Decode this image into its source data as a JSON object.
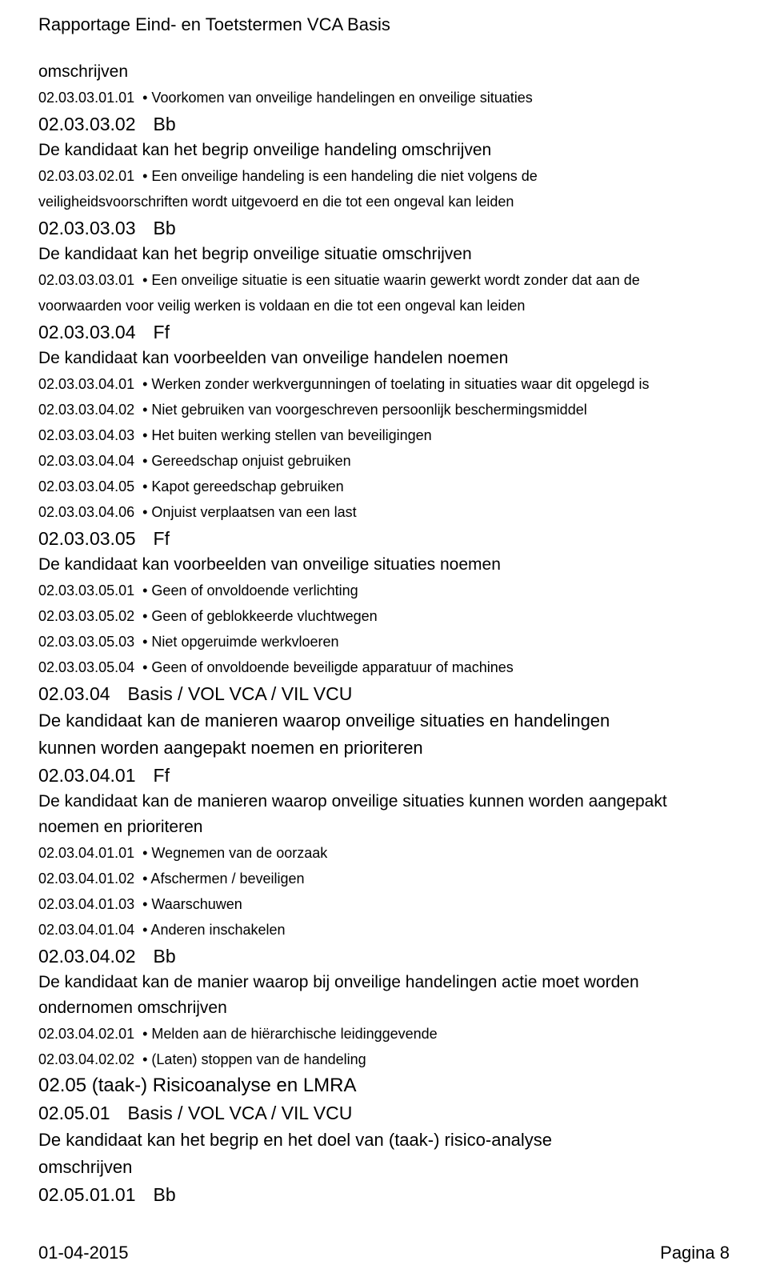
{
  "header": {
    "title": "Rapportage Eind- en Toetstermen VCA Basis"
  },
  "footer": {
    "date": "01-04-2015",
    "page": "Pagina 8"
  },
  "body": {
    "first_lvl_b": "omschrijven",
    "b1_code": "02.03.03.01.01",
    "b1_text": "• Voorkomen van onveilige handelingen en onveilige situaties",
    "s020302_code": "02.03.03.02",
    "s020302_label": "Bb",
    "s020302_desc": "De kandidaat kan het begrip onveilige handeling omschrijven",
    "b2_code": "02.03.03.02.01",
    "b2_text": "• Een onveilige handeling is een handeling die niet volgens de",
    "b2_text2": "veiligheidsvoorschriften wordt uitgevoerd en die tot een ongeval kan leiden",
    "s020303_code": "02.03.03.03",
    "s020303_label": "Bb",
    "s020303_desc": "De kandidaat kan het begrip onveilige situatie omschrijven",
    "b3_code": "02.03.03.03.01",
    "b3_text": "• Een onveilige situatie is een situatie waarin gewerkt wordt zonder dat aan de",
    "b3_text2": "voorwaarden voor veilig werken is voldaan en die tot een ongeval kan leiden",
    "s020304_code": "02.03.03.04",
    "s020304_label": "Ff",
    "s020304_desc": "De kandidaat kan voorbeelden van onveilige handelen noemen",
    "b4_1_code": "02.03.03.04.01",
    "b4_1_text": "• Werken zonder werkvergunningen of toelating in situaties waar dit opgelegd is",
    "b4_2_code": "02.03.03.04.02",
    "b4_2_text": "• Niet gebruiken van voorgeschreven persoonlijk beschermingsmiddel",
    "b4_3_code": "02.03.03.04.03",
    "b4_3_text": "• Het buiten werking stellen van beveiligingen",
    "b4_4_code": "02.03.03.04.04",
    "b4_4_text": "• Gereedschap onjuist gebruiken",
    "b4_5_code": "02.03.03.04.05",
    "b4_5_text": "• Kapot gereedschap gebruiken",
    "b4_6_code": "02.03.03.04.06",
    "b4_6_text": "• Onjuist verplaatsen van een last",
    "s020305_code": "02.03.03.05",
    "s020305_label": "Ff",
    "s020305_desc": "De kandidaat kan voorbeelden van onveilige situaties noemen",
    "b5_1_code": "02.03.03.05.01",
    "b5_1_text": "• Geen of onvoldoende verlichting",
    "b5_2_code": "02.03.03.05.02",
    "b5_2_text": "• Geen of geblokkeerde vluchtwegen",
    "b5_3_code": "02.03.03.05.03",
    "b5_3_text": "• Niet opgeruimde werkvloeren",
    "b5_4_code": "02.03.03.05.04",
    "b5_4_text": "• Geen of onvoldoende beveiligde apparatuur of machines",
    "s0204_code": "02.03.04",
    "s0204_label": "Basis / VOL VCA / VIL VCU",
    "s0204_desc_l1": "De kandidaat kan de manieren waarop onveilige situaties en handelingen",
    "s0204_desc_l2": "kunnen worden aangepakt noemen en prioriteren",
    "s020401_code": "02.03.04.01",
    "s020401_label": "Ff",
    "s020401_desc_l1": "De kandidaat kan de manieren waarop onveilige situaties kunnen worden aangepakt",
    "s020401_desc_l2": "noemen en prioriteren",
    "b6_1_code": "02.03.04.01.01",
    "b6_1_text": "• Wegnemen van de oorzaak",
    "b6_2_code": "02.03.04.01.02",
    "b6_2_text": "• Afschermen / beveiligen",
    "b6_3_code": "02.03.04.01.03",
    "b6_3_text": "• Waarschuwen",
    "b6_4_code": "02.03.04.01.04",
    "b6_4_text": "• Anderen inschakelen",
    "s020402_code": "02.03.04.02",
    "s020402_label": "Bb",
    "s020402_desc_l1": "De kandidaat kan de manier waarop bij onveilige handelingen actie moet worden",
    "s020402_desc_l2": "ondernomen omschrijven",
    "b7_1_code": "02.03.04.02.01",
    "b7_1_text": "• Melden aan de hiërarchische leidinggevende",
    "b7_2_code": "02.03.04.02.02",
    "b7_2_text": "• (Laten) stoppen van de handeling",
    "sec0205_title": "02.05 (taak-) Risicoanalyse en LMRA",
    "s020501_code": "02.05.01",
    "s020501_label": "Basis / VOL VCA / VIL VCU",
    "s020501_desc_l1": "De kandidaat kan het begrip en het doel van (taak-) risico-analyse",
    "s020501_desc_l2": "omschrijven",
    "s02050101_code": "02.05.01.01",
    "s02050101_label": "Bb"
  }
}
